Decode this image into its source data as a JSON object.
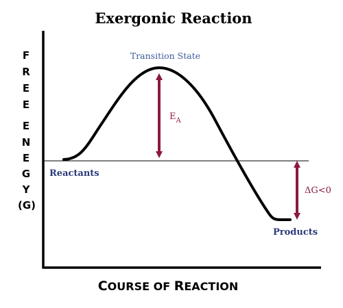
{
  "title": "Exergonic Reaction",
  "y_axis": {
    "letters": [
      "F",
      "R",
      "E",
      "E",
      "E",
      "N",
      "E",
      "G",
      "Y"
    ],
    "unit": "(G)"
  },
  "x_axis": {
    "first_big": "C",
    "rest_1": "OURSE OF ",
    "second_big": "R",
    "rest_2": "EACTION"
  },
  "labels": {
    "transition_state": "Transition State",
    "reactants": "Reactants",
    "products": "Products",
    "activation_energy_main": "E",
    "activation_energy_sub": "A",
    "delta_g": "ΔG<0"
  },
  "colors": {
    "curve": "#000000",
    "arrow": "#8b1a3e",
    "transition_label": "#3d5a9e",
    "reactant_product_label": "#2b3a7a"
  }
}
